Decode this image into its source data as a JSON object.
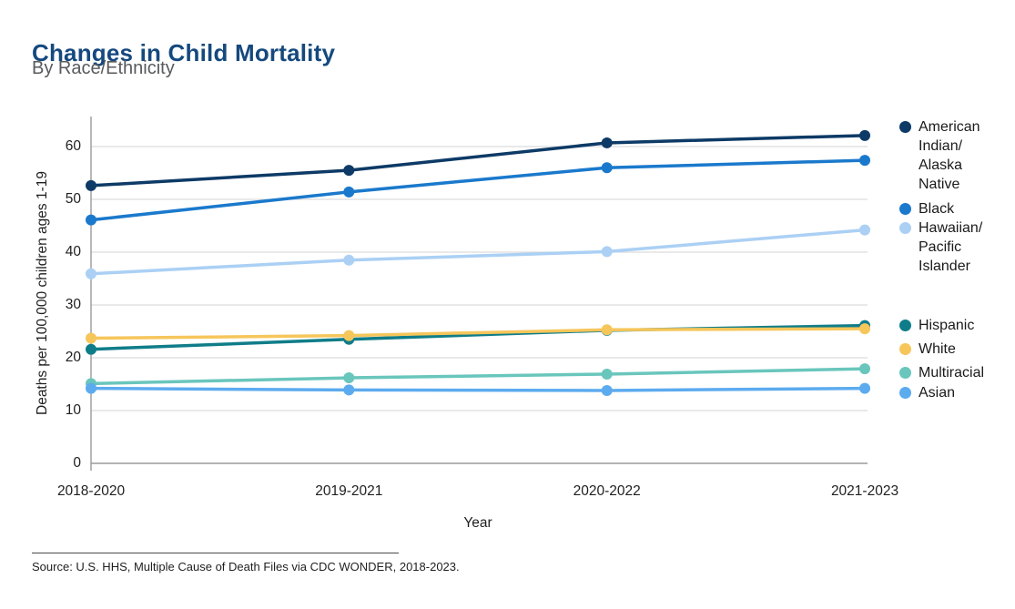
{
  "header": {
    "title": "Changes in Child Mortality",
    "subtitle": "By Race/Ethnicity"
  },
  "chart_data": {
    "type": "line",
    "title": "Changes in Child Mortality",
    "subtitle": "By Race/Ethnicity",
    "xlabel": "Year",
    "ylabel": "Deaths per 100,000 children ages 1-19",
    "categories": [
      "2018-2020",
      "2019-2021",
      "2020-2022",
      "2021-2023"
    ],
    "yticks": [
      0,
      10,
      20,
      30,
      40,
      50,
      60
    ],
    "ylim": [
      0,
      65
    ],
    "grid": true,
    "legend_position": "right",
    "series": [
      {
        "name": "American Indian/Alaska Native",
        "legend_lines": [
          "American",
          "Indian/",
          "Alaska",
          "Native"
        ],
        "color": "#0d3a66",
        "values": [
          52.6,
          55.5,
          60.7,
          62.1
        ]
      },
      {
        "name": "Black",
        "legend_lines": [
          "Black"
        ],
        "color": "#1a79cc",
        "values": [
          46.1,
          51.4,
          56.0,
          57.4
        ]
      },
      {
        "name": "Hawaiian/Pacific Islander",
        "legend_lines": [
          "Hawaiian/",
          "Pacific",
          "Islander"
        ],
        "color": "#abd0f4",
        "values": [
          35.9,
          38.5,
          40.1,
          44.2
        ]
      },
      {
        "name": "Hispanic",
        "legend_lines": [
          "Hispanic"
        ],
        "color": "#0f7d89",
        "values": [
          21.6,
          23.5,
          25.2,
          26.1
        ]
      },
      {
        "name": "White",
        "legend_lines": [
          "White"
        ],
        "color": "#f6c65b",
        "values": [
          23.7,
          24.2,
          25.3,
          25.5
        ]
      },
      {
        "name": "Multiracial",
        "legend_lines": [
          "Multiracial"
        ],
        "color": "#69c6bc",
        "values": [
          15.1,
          16.2,
          16.9,
          17.9
        ]
      },
      {
        "name": "Asian",
        "legend_lines": [
          "Asian"
        ],
        "color": "#5cabef",
        "values": [
          14.2,
          13.9,
          13.8,
          14.2
        ]
      }
    ],
    "colors": {
      "title": "#15497e",
      "subtitle": "#595a5c",
      "gridline": "#dcdcdc",
      "axis": "#9a9a9a",
      "text": "#1f1f1f"
    }
  },
  "source": {
    "text": "Source: U.S. HHS, Multiple Cause of Death Files via CDC WONDER, 2018-2023."
  }
}
